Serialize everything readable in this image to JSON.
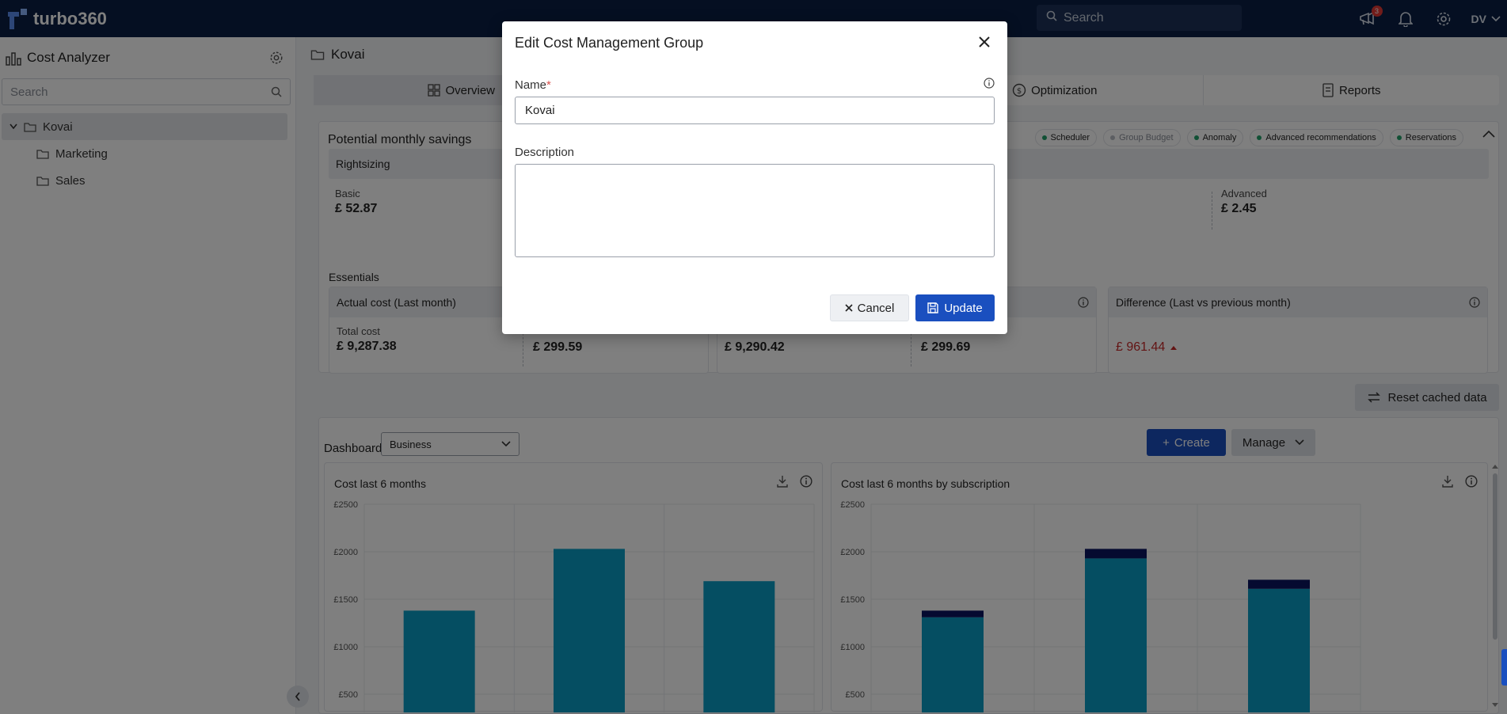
{
  "app": {
    "brand": "turbo360"
  },
  "topbar": {
    "search_placeholder": "Search",
    "notifications_count": "3",
    "user_initials": "DV"
  },
  "sidebar": {
    "title": "Cost Analyzer",
    "search_placeholder": "Search",
    "items": [
      {
        "label": "Kovai"
      },
      {
        "label": "Marketing"
      },
      {
        "label": "Sales"
      }
    ]
  },
  "main": {
    "breadcrumb": "Kovai",
    "tabs": [
      {
        "label": "Overview"
      },
      {
        "label": "Optimization"
      },
      {
        "label": "Reports"
      }
    ],
    "savings": {
      "title": "Potential monthly savings",
      "chips": [
        {
          "label": "Scheduler",
          "status": "on"
        },
        {
          "label": "Group Budget",
          "status": "off"
        },
        {
          "label": "Anomaly",
          "status": "on"
        },
        {
          "label": "Advanced recommendations",
          "status": "on"
        },
        {
          "label": "Reservations",
          "status": "on"
        }
      ],
      "rightsizing_label": "Rightsizing",
      "basic_label": "Basic",
      "basic_value": "£ 52.87",
      "advanced_label": "Advanced",
      "advanced_value": "£ 2.45",
      "essentials_label": "Essentials",
      "actual_cost_header": "Actual cost (Last month)",
      "total_cost_label": "Total cost",
      "total_cost_value": "£ 9,287.38",
      "value_2": "£ 299.59",
      "value_3": "£ 9,290.42",
      "value_4": "£ 299.69",
      "difference_header": "Difference (Last vs previous month)",
      "difference_value": "£ 961.44"
    },
    "reset_label": "Reset cached data",
    "dashboard": {
      "label": "Dashboard",
      "selected": "Business",
      "create_label": "Create",
      "manage_label": "Manage"
    }
  },
  "modal": {
    "title": "Edit Cost Management Group",
    "name_label": "Name",
    "name_value": "Kovai",
    "description_label": "Description",
    "cancel_label": "Cancel",
    "update_label": "Update"
  },
  "colors": {
    "bar": "#0a9dc4",
    "bar_top": "#0b1560",
    "primary": "#1a4fbf"
  },
  "chart_data": [
    {
      "type": "bar",
      "title": "Cost last 6 months",
      "yticks": [
        "£2500",
        "£2000",
        "£1500",
        "£1000",
        "£500"
      ],
      "ylim": [
        500,
        2500
      ],
      "values": [
        1380,
        2030,
        1690
      ]
    },
    {
      "type": "bar",
      "title": "Cost last 6 months by subscription",
      "yticks": [
        "£2500",
        "£2000",
        "£1500",
        "£1000",
        "£500"
      ],
      "ylim": [
        500,
        2500
      ],
      "series": [
        {
          "values": [
            1310,
            1930,
            1610
          ]
        },
        {
          "values": [
            70,
            100,
            95
          ]
        }
      ]
    }
  ]
}
